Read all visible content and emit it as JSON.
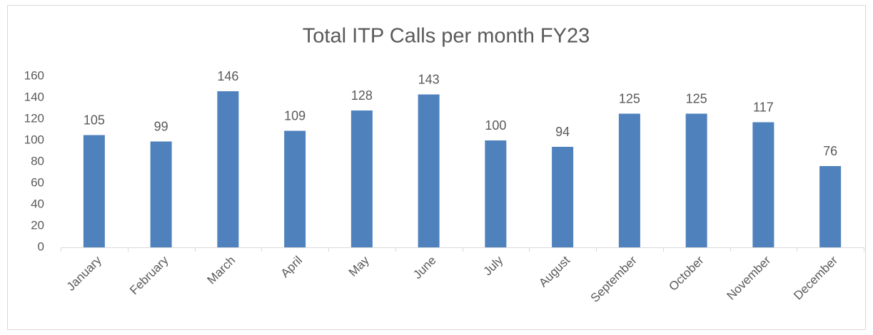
{
  "chart_data": {
    "type": "bar",
    "title": "Total ITP Calls per month FY23",
    "categories": [
      "January",
      "February",
      "March",
      "April",
      "May",
      "June",
      "July",
      "August",
      "September",
      "October",
      "November",
      "December"
    ],
    "values": [
      105,
      99,
      146,
      109,
      128,
      143,
      100,
      94,
      125,
      125,
      117,
      76
    ],
    "color": "#4f81bd",
    "ylim": [
      0,
      160
    ],
    "yticks": [
      0,
      20,
      40,
      60,
      80,
      100,
      120,
      140,
      160
    ],
    "grid": false
  }
}
